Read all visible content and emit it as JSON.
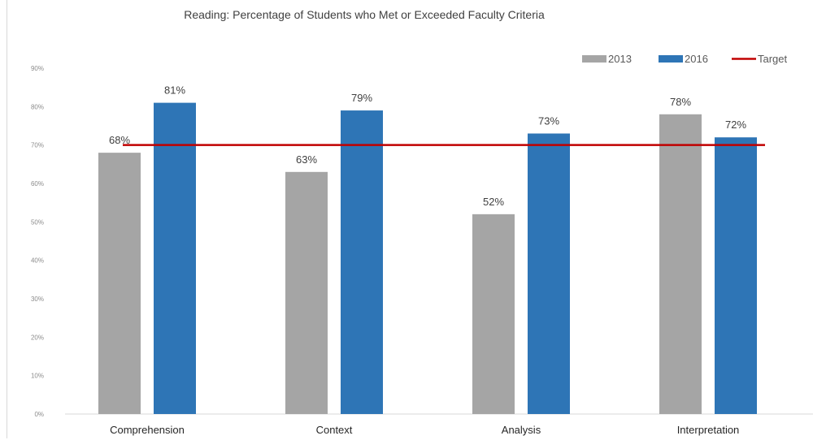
{
  "chart_data": {
    "type": "bar",
    "title": "Reading: Percentage of Students who Met or Exceeded Faculty Criteria",
    "categories": [
      "Comprehension",
      "Context",
      "Analysis",
      "Interpretation"
    ],
    "series": [
      {
        "name": "2013",
        "values": [
          68,
          63,
          52,
          78
        ],
        "labels": [
          "68%",
          "63%",
          "52%",
          "78%"
        ],
        "color": "#a5a5a5"
      },
      {
        "name": "2016",
        "values": [
          81,
          79,
          73,
          72
        ],
        "labels": [
          "81%",
          "79%",
          "73%",
          "72%"
        ],
        "color": "#2e75b6"
      }
    ],
    "target": {
      "name": "Target",
      "value": 70,
      "color": "#c00000"
    },
    "ylim": [
      0,
      90
    ],
    "yticks": [
      "0%",
      "10%",
      "20%",
      "30%",
      "40%",
      "50%",
      "60%",
      "70%",
      "80%",
      "90%"
    ],
    "xlabel": "",
    "ylabel": "",
    "grid": false,
    "legend": "top-right"
  }
}
